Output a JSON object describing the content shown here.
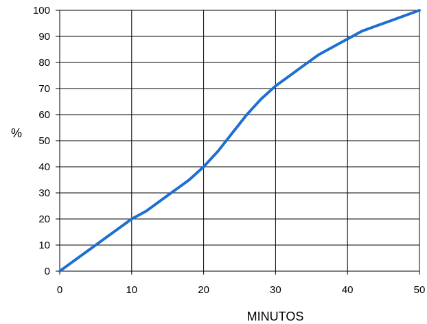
{
  "chart_data": {
    "type": "line",
    "xlabel": "MINUTOS",
    "ylabel": "%",
    "xlim": [
      0,
      50
    ],
    "ylim": [
      0,
      100
    ],
    "x_ticks": [
      "0",
      "10",
      "20",
      "30",
      "40",
      "50"
    ],
    "y_ticks": [
      "0",
      "10",
      "20",
      "30",
      "40",
      "50",
      "60",
      "70",
      "80",
      "90",
      "100"
    ],
    "grid": true,
    "line_color": "#1f6fd0",
    "series": [
      {
        "x": [
          0,
          5,
          10,
          12,
          15,
          18,
          20,
          22,
          24,
          26,
          28,
          30,
          32,
          34,
          36,
          38,
          40,
          42,
          44,
          46,
          48,
          50
        ],
        "values": [
          0,
          10,
          20,
          23,
          29,
          35,
          40,
          46,
          53,
          60,
          66,
          71,
          75,
          79,
          83,
          86,
          89,
          92,
          94,
          96,
          98,
          100
        ]
      }
    ]
  }
}
